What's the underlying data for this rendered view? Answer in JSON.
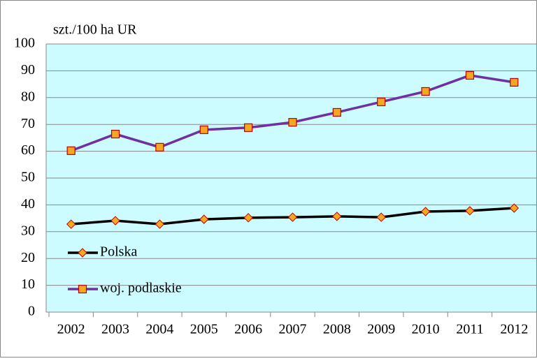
{
  "chart_data": {
    "type": "line",
    "y_axis_label": "szt./100 ha UR",
    "categories": [
      "2002",
      "2003",
      "2004",
      "2005",
      "2006",
      "2007",
      "2008",
      "2009",
      "2010",
      "2011",
      "2012"
    ],
    "series": [
      {
        "name": "Polska",
        "color": "#000000",
        "marker": "diamond",
        "marker_color": "#f5a623",
        "values": [
          32.8,
          34.1,
          32.8,
          34.6,
          35.2,
          35.4,
          35.7,
          35.4,
          37.5,
          37.8,
          38.8
        ]
      },
      {
        "name": "woj. podlaskie",
        "color": "#7030a0",
        "marker": "square",
        "marker_color": "#f5a623",
        "values": [
          60.2,
          66.4,
          61.5,
          68,
          68.8,
          70.8,
          74.5,
          78.4,
          82.3,
          88.3,
          85.7
        ]
      }
    ],
    "ylim": [
      0,
      100
    ],
    "yticks": [
      0,
      10,
      20,
      30,
      40,
      50,
      60,
      70,
      80,
      90,
      100
    ],
    "grid": true,
    "plot_background": "#ccfcff",
    "legend": "lower left"
  }
}
